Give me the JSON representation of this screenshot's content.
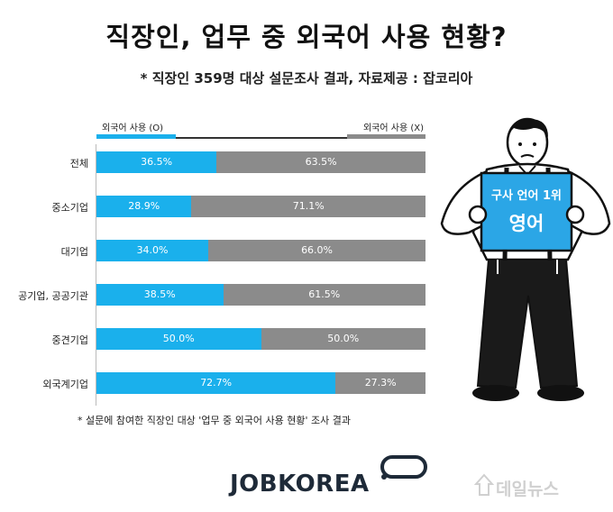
{
  "title": "직장인, 업무 중 외국어 사용 현황?",
  "subtitle": "* 직장인 359명 대상 설문조사 결과, 자료제공 : 잡코리아",
  "legend": {
    "left": "외국어 사용 (O)",
    "right": "외국어 사용 (X)"
  },
  "footnote": "* 설문에 참여한 직장인 대상 '업무 중 외국어 사용 현황' 조사 결과",
  "sign": {
    "line1": "구사 언어 1위",
    "line2": "영어"
  },
  "logo": "JOBKOREA",
  "watermark": "데일뉴스",
  "colors": {
    "use": "#1ab0ec",
    "not_use": "#8b8b8b"
  },
  "chart_data": {
    "type": "bar",
    "orientation": "horizontal-stacked-100",
    "categories": [
      "전체",
      "중소기업",
      "대기업",
      "공기업, 공공기관",
      "중견기업",
      "외국계기업"
    ],
    "series": [
      {
        "name": "외국어 사용 (O)",
        "values": [
          36.5,
          28.9,
          34.0,
          38.5,
          50.0,
          72.7
        ],
        "labels": [
          "36.5%",
          "28.9%",
          "34.0%",
          "38.5%",
          "50.0%",
          "72.7%"
        ]
      },
      {
        "name": "외국어 사용 (X)",
        "values": [
          63.5,
          71.1,
          66.0,
          61.5,
          50.0,
          27.3
        ],
        "labels": [
          "63.5%",
          "71.1%",
          "66.0%",
          "61.5%",
          "50.0%",
          "27.3%"
        ]
      }
    ],
    "xlim": [
      0,
      100
    ]
  }
}
